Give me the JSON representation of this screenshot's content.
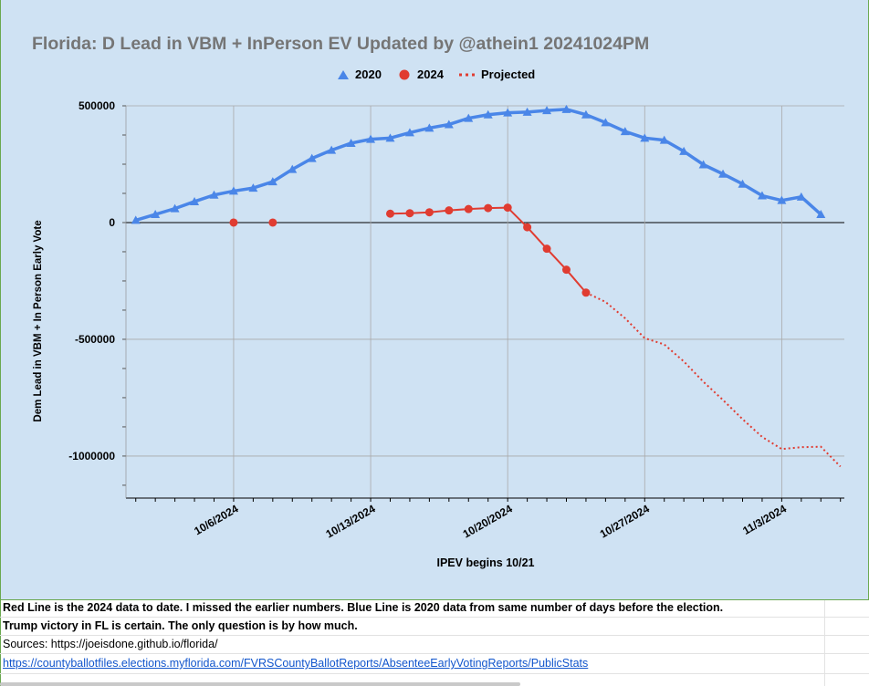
{
  "chart_data": {
    "type": "line",
    "title": "Florida: D Lead in VBM + InPerson EV Updated by @athein1 20241024PM",
    "xlabel": "IPEV begins 10/21",
    "ylabel": "Dem Lead in VBM + In Person Early Vote",
    "y_ticks": [
      "500000",
      "0",
      "-500000",
      "-1000000"
    ],
    "y_tick_values": [
      500000,
      0,
      -500000,
      -1000000
    ],
    "x_tick_labels": [
      "10/6/2024",
      "10/13/2024",
      "10/20/2024",
      "10/27/2024",
      "11/3/2024"
    ],
    "x_tick_days": [
      6,
      13,
      20,
      27,
      34
    ],
    "x_start_day": 1,
    "x_end_day": 37,
    "ylim": [
      -1180000,
      500000
    ],
    "grid": true,
    "legend_position": "top",
    "series": [
      {
        "name": "2020",
        "color": "#4a86e8",
        "marker": "triangle",
        "days": [
          1,
          2,
          3,
          4,
          5,
          6,
          7,
          8,
          9,
          10,
          11,
          12,
          13,
          14,
          15,
          16,
          17,
          18,
          19,
          20,
          21,
          22,
          23,
          24,
          25,
          26,
          27,
          28,
          29,
          30,
          31,
          32,
          33,
          34,
          35,
          36
        ],
        "values": [
          10000,
          35000,
          60000,
          90000,
          118000,
          135000,
          148000,
          175000,
          228000,
          275000,
          310000,
          340000,
          357000,
          362000,
          385000,
          405000,
          420000,
          447000,
          462000,
          470000,
          473000,
          480000,
          485000,
          462000,
          428000,
          390000,
          362000,
          353000,
          305000,
          248000,
          208000,
          165000,
          115000,
          95000,
          110000,
          35000
        ]
      },
      {
        "name": "2024",
        "color": "#e03c31",
        "marker": "circle",
        "segments": [
          {
            "days": [
              6
            ],
            "values": [
              0
            ]
          },
          {
            "days": [
              8
            ],
            "values": [
              0
            ]
          },
          {
            "days": [
              14,
              15,
              16,
              17,
              18,
              19,
              20,
              21,
              22,
              23,
              24
            ],
            "values": [
              38000,
              40000,
              44000,
              52000,
              58000,
              62000,
              64000,
              -20000,
              -112000,
              -202000,
              -300000
            ]
          }
        ]
      },
      {
        "name": "Projected",
        "color": "#e03c31",
        "style": "dotted",
        "days": [
          24,
          25,
          26,
          27,
          28,
          29,
          30,
          31,
          32,
          33,
          34,
          35,
          36,
          37
        ],
        "values": [
          -300000,
          -340000,
          -410000,
          -495000,
          -522000,
          -595000,
          -682000,
          -760000,
          -842000,
          -918000,
          -970000,
          -962000,
          -960000,
          -1045000
        ]
      }
    ]
  },
  "notes": {
    "line1": "Red Line is the 2024 data to date. I missed the earlier numbers. Blue Line is 2020 data from same number of days before the election.",
    "line2": "Trump victory in FL is certain. The only question is by how much.",
    "line3": "Sources:   https://joeisdone.github.io/florida/",
    "line4": "https://countyballotfiles.elections.myflorida.com/FVRSCountyBallotReports/AbsenteeEarlyVotingReports/PublicStats"
  }
}
